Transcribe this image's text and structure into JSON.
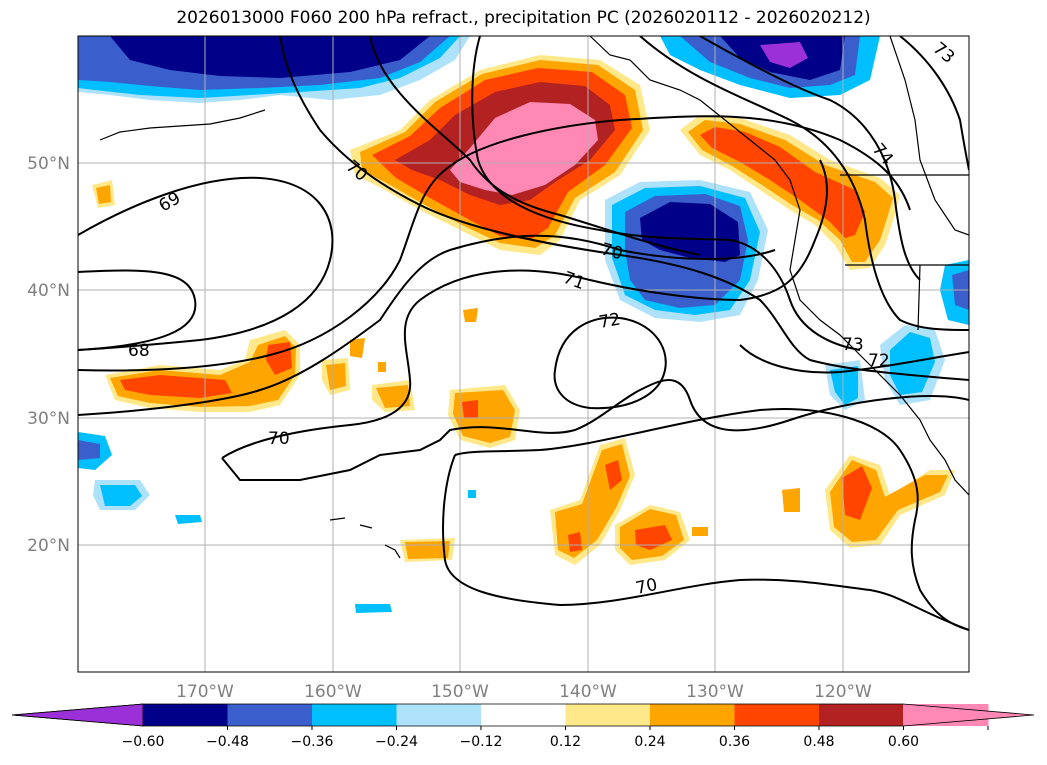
{
  "title": "2026013000 F060 200 hPa refract., precipitation PC (2026020112 - 2026020212)",
  "map": {
    "lon_ticks": [
      "170°W",
      "160°W",
      "150°W",
      "140°W",
      "130°W",
      "120°W"
    ],
    "lat_ticks": [
      "50°N",
      "40°N",
      "30°N",
      "20°N"
    ],
    "contour_labels": [
      "74",
      "73",
      "72",
      "72",
      "71",
      "70",
      "70",
      "70",
      "70",
      "69",
      "68",
      "73"
    ]
  },
  "colorbar": {
    "tick_labels": [
      "−0.60",
      "−0.48",
      "−0.36",
      "−0.24",
      "−0.12",
      "0.12",
      "0.24",
      "0.36",
      "0.48",
      "0.60"
    ],
    "colors": [
      "#9b30d9",
      "#000088",
      "#3a5fcd",
      "#00bfff",
      "#aee1fa",
      "#ffffff",
      "#ffe88a",
      "#ffa500",
      "#ff4500",
      "#b22222",
      "#ff89b4",
      "#ff89b4"
    ]
  }
}
